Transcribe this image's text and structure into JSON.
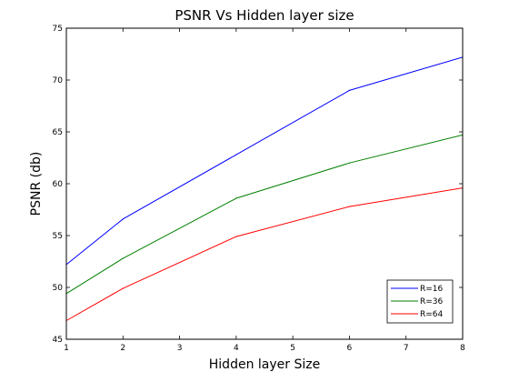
{
  "chart_data": {
    "type": "line",
    "title": "PSNR Vs Hidden layer size",
    "xlabel": "Hidden layer Size",
    "ylabel": "PSNR (db)",
    "xlim": [
      1,
      8
    ],
    "ylim": [
      45,
      75
    ],
    "xticks": [
      1,
      2,
      3,
      4,
      5,
      6,
      7,
      8
    ],
    "yticks": [
      45,
      50,
      55,
      60,
      65,
      70,
      75
    ],
    "grid": false,
    "legend_position": "bottom-right",
    "x": [
      1,
      2,
      4,
      6,
      8
    ],
    "series": [
      {
        "name": "R=16",
        "color": "#0000ff",
        "values": [
          52.2,
          56.6,
          62.8,
          69.0,
          72.2
        ]
      },
      {
        "name": "R=36",
        "color": "#008000",
        "values": [
          49.4,
          52.8,
          58.6,
          62.0,
          64.7
        ]
      },
      {
        "name": "R=64",
        "color": "#ff0000",
        "values": [
          46.8,
          49.9,
          54.9,
          57.8,
          59.6
        ]
      }
    ]
  }
}
